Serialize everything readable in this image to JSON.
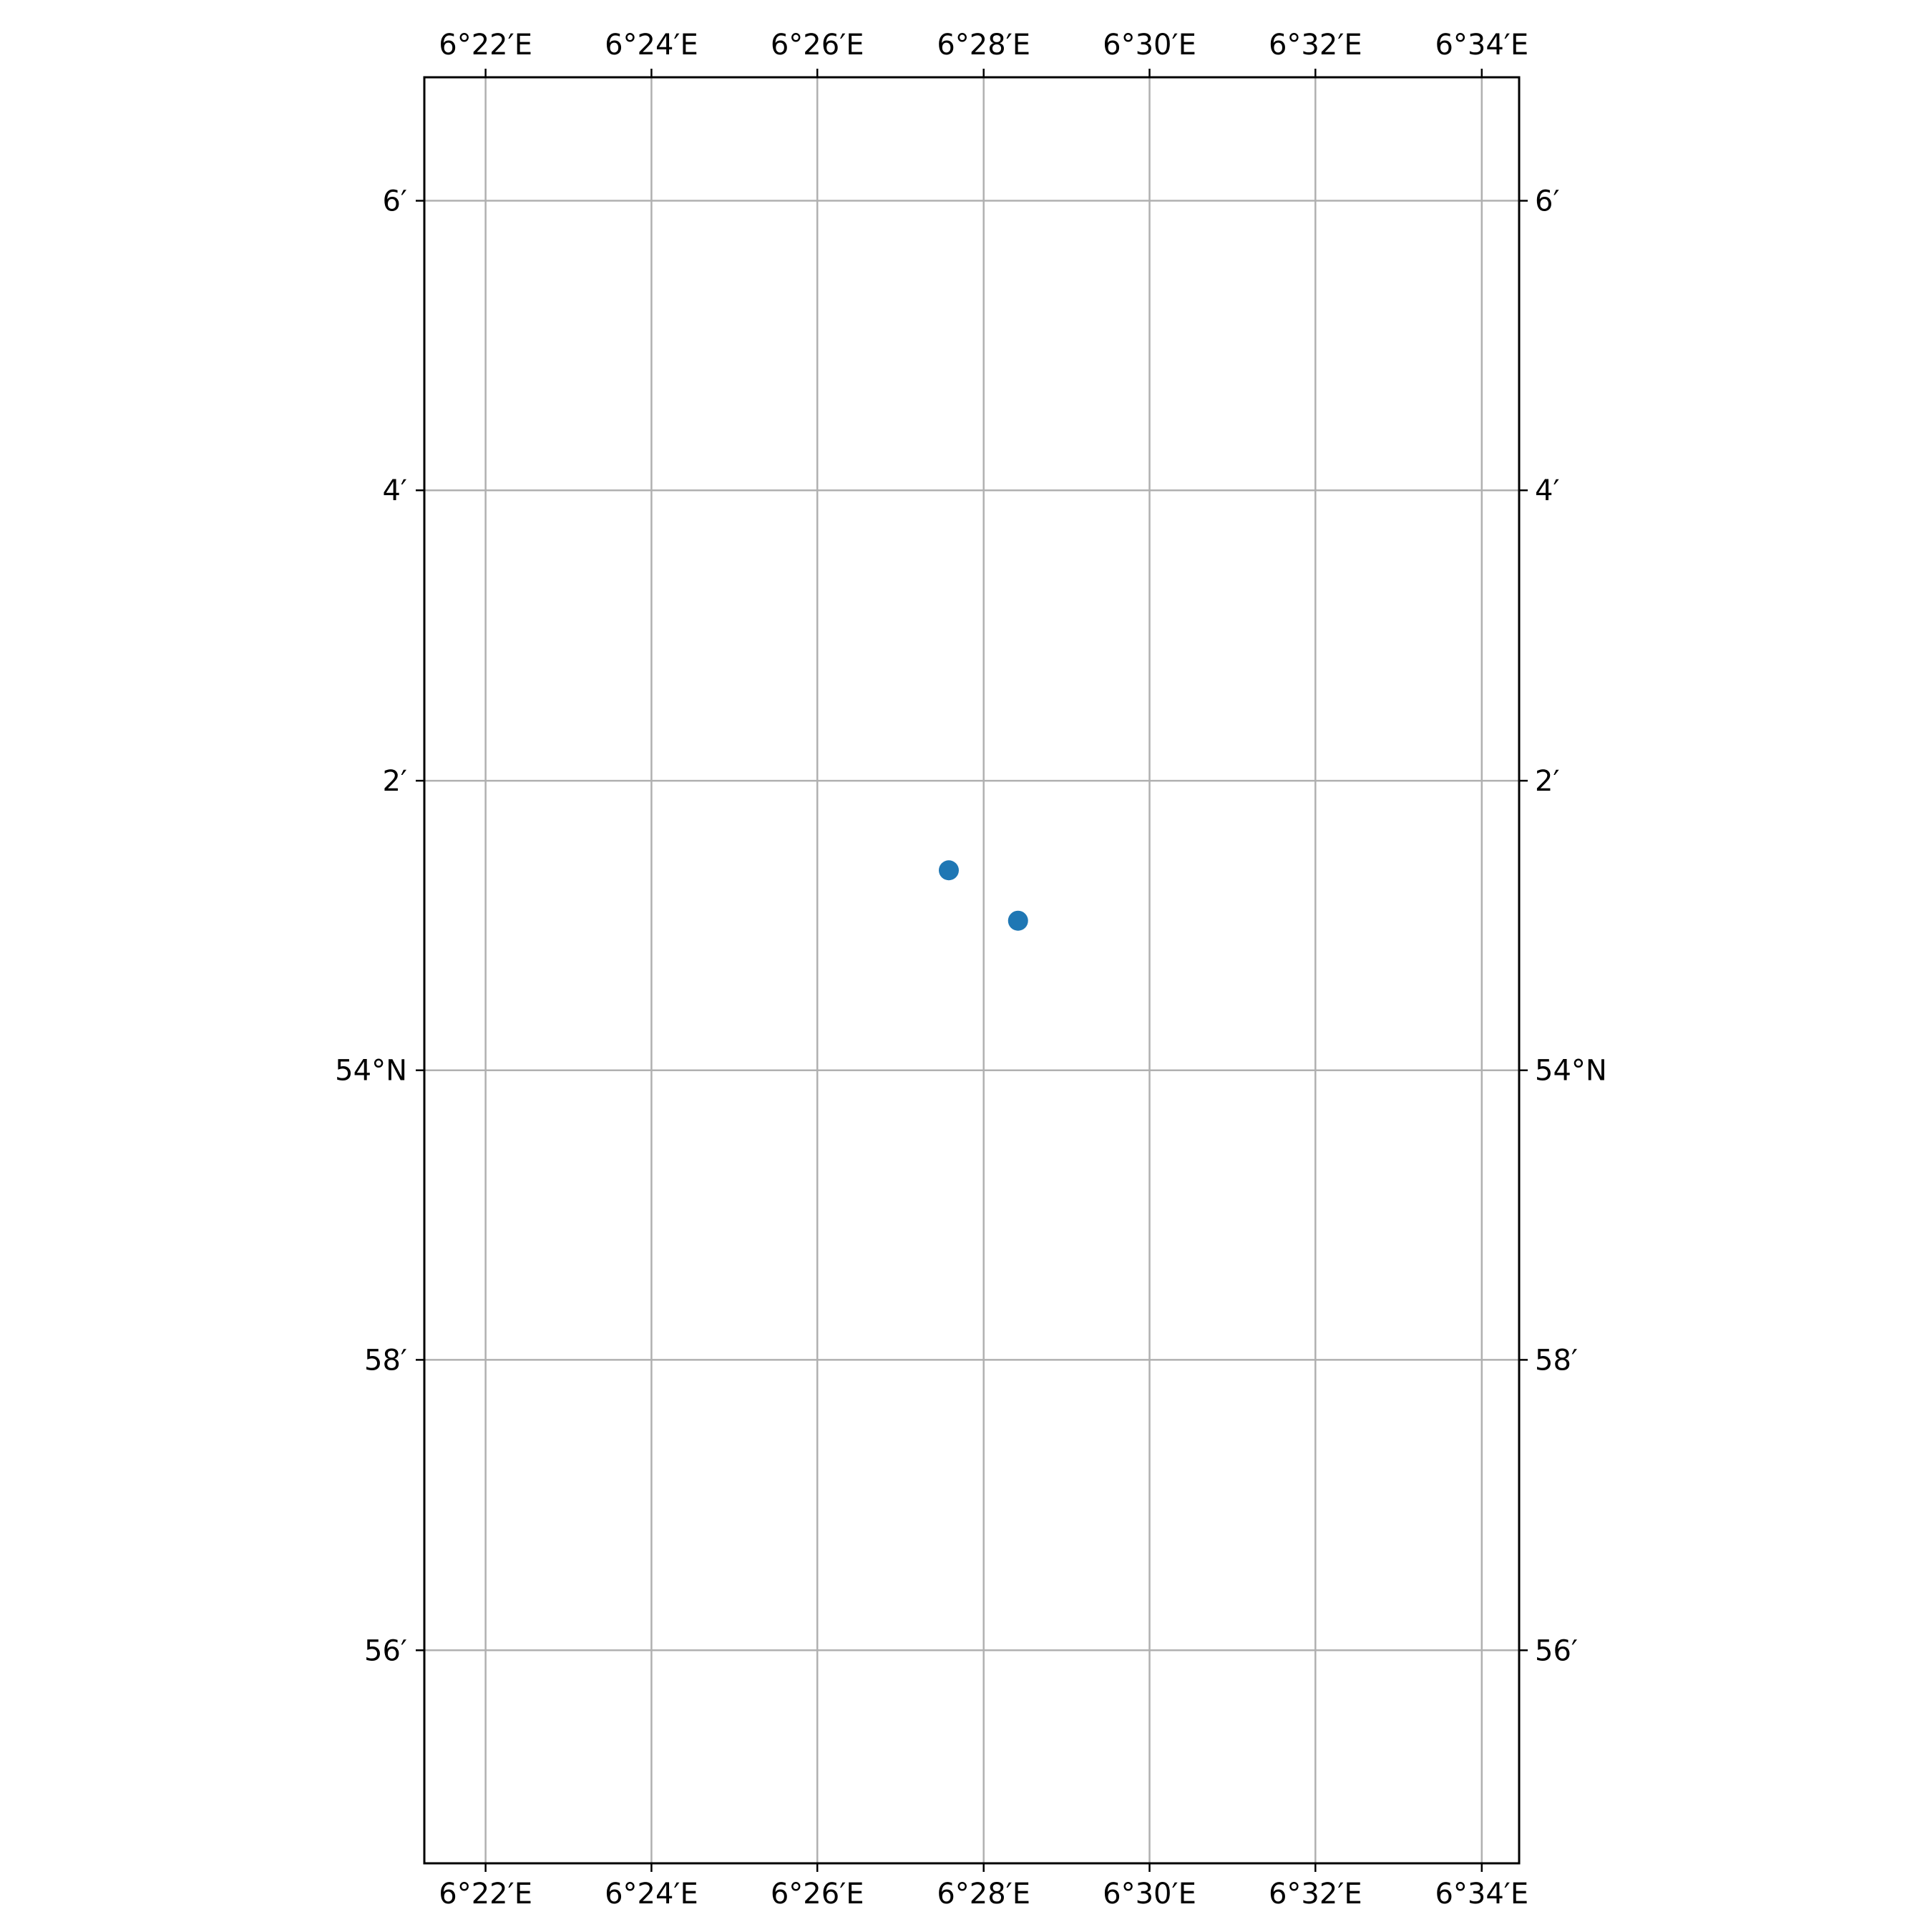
{
  "map": {
    "lon_range": [
      6.3544,
      6.5742
    ],
    "lat_range": [
      53.9088,
      54.1142
    ],
    "gridlines": true,
    "colors": {
      "point": "#1f77b4",
      "grid": "#b0b0b0",
      "frame": "#000000"
    },
    "lon_ticks": [
      {
        "value": 6.3667,
        "label": "6°22′E"
      },
      {
        "value": 6.4,
        "label": "6°24′E"
      },
      {
        "value": 6.4333,
        "label": "6°26′E"
      },
      {
        "value": 6.4667,
        "label": "6°28′E"
      },
      {
        "value": 6.5,
        "label": "6°30′E"
      },
      {
        "value": 6.5333,
        "label": "6°32′E"
      },
      {
        "value": 6.5667,
        "label": "6°34′E"
      }
    ],
    "lat_ticks": [
      {
        "value": 54.1,
        "label": "6′"
      },
      {
        "value": 54.0667,
        "label": "4′"
      },
      {
        "value": 54.0333,
        "label": "2′"
      },
      {
        "value": 54.0,
        "label": "54°N"
      },
      {
        "value": 53.9667,
        "label": "58′"
      },
      {
        "value": 53.9333,
        "label": "56′"
      }
    ],
    "points": [
      {
        "lon": 6.4597,
        "lat": 54.023
      },
      {
        "lon": 6.4736,
        "lat": 54.0172
      }
    ]
  }
}
